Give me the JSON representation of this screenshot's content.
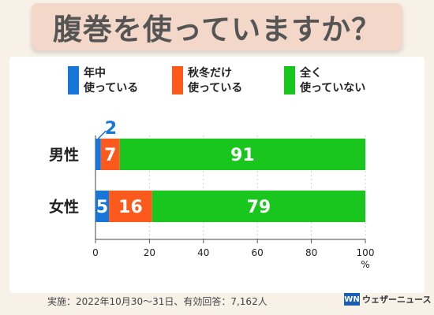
{
  "header": {
    "title": "腹巻を使っていますか？"
  },
  "legend": [
    {
      "label": "年中\n使っている",
      "color": "#1677d8"
    },
    {
      "label": "秋冬だけ\n使っている",
      "color": "#fb5a1c"
    },
    {
      "label": "全く\n使っていない",
      "color": "#19c61d"
    }
  ],
  "chart_data": {
    "type": "bar",
    "orientation": "horizontal",
    "stacked": true,
    "categories": [
      "男性",
      "女性"
    ],
    "series": [
      {
        "name": "年中使っている",
        "values": [
          2,
          5
        ],
        "color": "#1677d8"
      },
      {
        "name": "秋冬だけ使っている",
        "values": [
          7,
          16
        ],
        "color": "#fb5a1c"
      },
      {
        "name": "全く使っていない",
        "values": [
          91,
          79
        ],
        "color": "#19c61d"
      }
    ],
    "xlim": [
      0,
      100
    ],
    "xticks": [
      "0",
      "20",
      "40",
      "60",
      "80",
      "100"
    ],
    "xunit": "%",
    "legend_position": "top"
  },
  "footer": {
    "note": "実施：2022年10月30〜31日、有効回答：7,162人",
    "brand_logo": "WN",
    "brand_name": "ウェザーニュース"
  }
}
